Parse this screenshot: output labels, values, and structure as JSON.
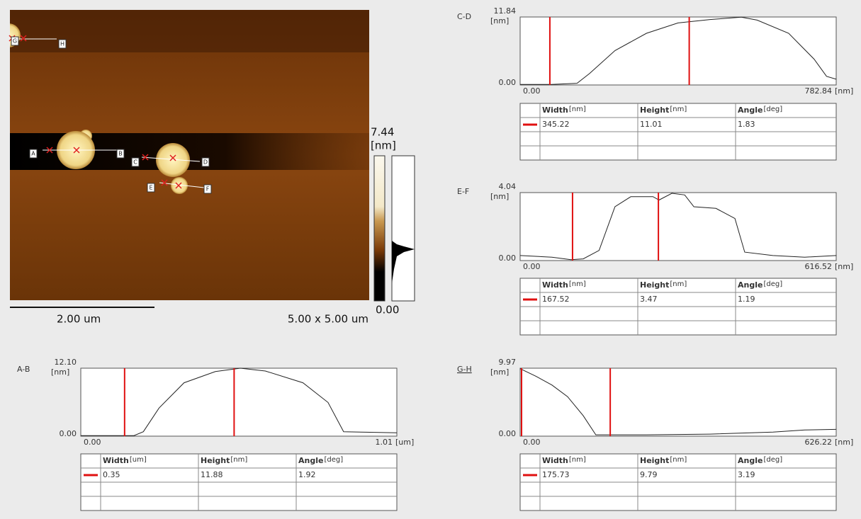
{
  "image": {
    "scale_bar": "2.00 um",
    "size": "5.00 x 5.00 um",
    "color_max": "7.44",
    "color_unit": "[nm]",
    "color_min": "0.00",
    "markers": [
      "A",
      "B",
      "C",
      "D",
      "E",
      "F",
      "G",
      "H"
    ]
  },
  "profiles": [
    {
      "name": "A-B",
      "y_unit": "[nm]",
      "x_unit": "[um]",
      "ylim": [
        0,
        12.1
      ],
      "yticks": [
        {
          "value": 0,
          "label": "0.00"
        },
        {
          "value": 12.1,
          "label": "12.10"
        }
      ],
      "xlim": [
        0,
        1.01
      ],
      "xticks": [
        {
          "value": 0,
          "label": "0.00"
        },
        {
          "value": 1.01,
          "label": "1.01"
        }
      ],
      "cursors": [
        0.14,
        0.49
      ],
      "x": [
        0,
        0.17,
        0.2,
        0.25,
        0.33,
        0.43,
        0.51,
        0.59,
        0.71,
        0.79,
        0.84,
        0.91,
        1.01
      ],
      "y": [
        0.1,
        0.1,
        0.8,
        5,
        9.5,
        11.5,
        12.1,
        11.6,
        9.5,
        6,
        0.8,
        0.7,
        0.6
      ],
      "table": {
        "headers": [
          {
            "name": "Width",
            "unit": "[um]"
          },
          {
            "name": "Height",
            "unit": "[nm]"
          },
          {
            "name": "Angle",
            "unit": "[deg]"
          }
        ],
        "row": [
          "0.35",
          "11.88",
          "1.92"
        ]
      }
    },
    {
      "name": "C-D",
      "y_unit": "[nm]",
      "x_unit": "[nm]",
      "ylim": [
        0,
        11.84
      ],
      "yticks": [
        {
          "value": 0,
          "label": "0.00"
        },
        11.84
      ],
      "xlim": [
        0,
        782.84
      ],
      "xticks": [
        {
          "value": 0,
          "label": "0.00"
        },
        782.84
      ],
      "cursors": [
        73.6,
        418.8
      ],
      "x": [
        0,
        78,
        141,
        172,
        235,
        313,
        391,
        470,
        548,
        587,
        665,
        728,
        759,
        783
      ],
      "y": [
        0.1,
        0.1,
        0.3,
        2,
        6,
        9,
        10.8,
        11.4,
        11.8,
        11.3,
        9,
        4.5,
        1.5,
        1
      ],
      "table": {
        "headers": [
          {
            "name": "Width",
            "unit": "[nm]"
          },
          {
            "name": "Height",
            "unit": "[nm]"
          },
          {
            "name": "Angle",
            "unit": "[deg]"
          }
        ],
        "row": [
          "345.22",
          "11.01",
          "1.83"
        ]
      }
    },
    {
      "name": "E-F",
      "y_unit": "[nm]",
      "x_unit": "[nm]",
      "ylim": [
        0,
        4.04
      ],
      "yticks": [
        {
          "value": 0,
          "label": "0.00"
        },
        4.04
      ],
      "xlim": [
        0,
        616.52
      ],
      "xticks": [
        {
          "value": 0,
          "label": "0.00"
        },
        616.52
      ],
      "cursors": [
        102.2,
        269.7
      ],
      "x": [
        0,
        62,
        99,
        123,
        154,
        185,
        216,
        259,
        271,
        296,
        321,
        339,
        382,
        419,
        438,
        493,
        555,
        617
      ],
      "y": [
        0.3,
        0.2,
        0.05,
        0.1,
        0.6,
        3.2,
        3.8,
        3.8,
        3.6,
        4,
        3.9,
        3.2,
        3.1,
        2.5,
        0.5,
        0.3,
        0.2,
        0.3
      ],
      "table": {
        "headers": [
          {
            "name": "Width",
            "unit": "[nm]"
          },
          {
            "name": "Height",
            "unit": "[nm]"
          },
          {
            "name": "Angle",
            "unit": "[deg]"
          }
        ],
        "row": [
          "167.52",
          "3.47",
          "1.19"
        ]
      }
    },
    {
      "name": "G-H",
      "y_unit": "[nm]",
      "x_unit": "[nm]",
      "ylim": [
        0,
        9.97
      ],
      "yticks": [
        {
          "value": 0,
          "label": "0.00"
        },
        9.97
      ],
      "xlim": [
        0,
        626.22
      ],
      "xticks": [
        {
          "value": 0,
          "label": "0.00"
        },
        626.22
      ],
      "cursors": [
        2.8,
        178.5
      ],
      "x": [
        0,
        31,
        63,
        94,
        125,
        150,
        250,
        376,
        501,
        564,
        626
      ],
      "y": [
        9.9,
        8.8,
        7.5,
        5.8,
        3,
        0.2,
        0.2,
        0.3,
        0.6,
        0.9,
        1
      ],
      "table": {
        "headers": [
          {
            "name": "Width",
            "unit": "[nm]"
          },
          {
            "name": "Height",
            "unit": "[nm]"
          },
          {
            "name": "Angle",
            "unit": "[deg]"
          }
        ],
        "row": [
          "175.73",
          "9.79",
          "3.19"
        ]
      }
    }
  ]
}
